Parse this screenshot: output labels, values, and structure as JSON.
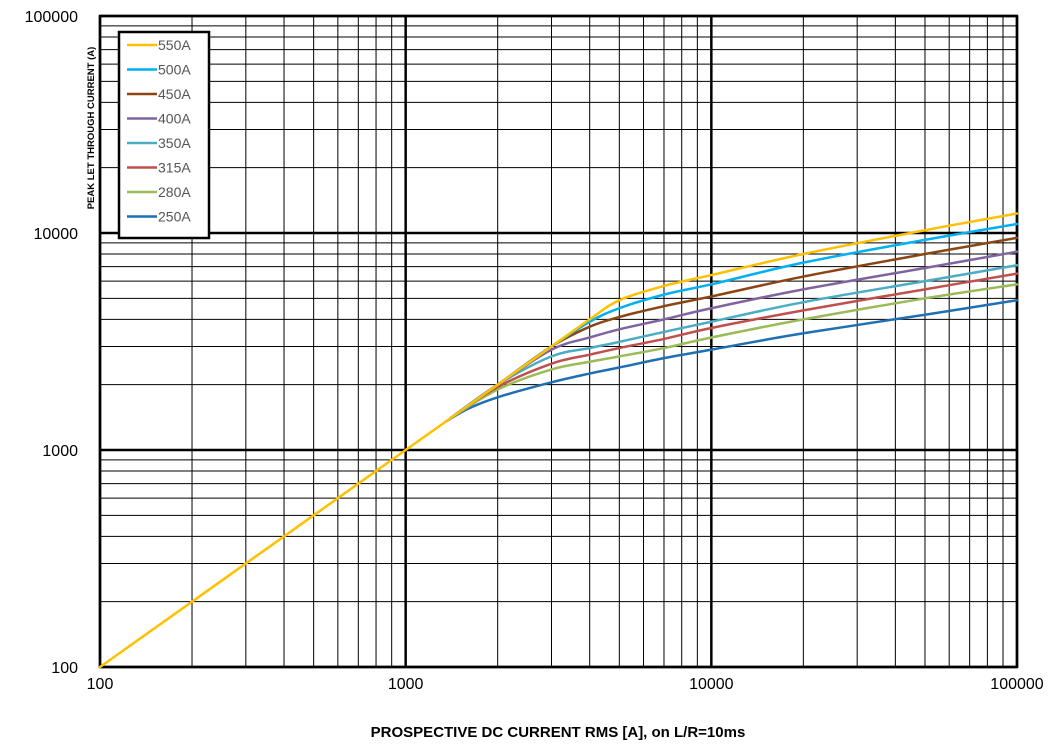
{
  "chart_data": {
    "type": "line",
    "title": "",
    "xlabel": "PROSPECTIVE DC CURRENT RMS [A], on L/R=10ms",
    "ylabel": "PEAK LET THROUGH CURRENT (A)",
    "xscale": "log",
    "yscale": "log",
    "xlim": [
      100,
      100000
    ],
    "ylim": [
      100,
      100000
    ],
    "x_ticks": [
      "100",
      "1000",
      "10000",
      "100000"
    ],
    "y_ticks": [
      "100",
      "1000",
      "10000",
      "100000"
    ],
    "grid": true,
    "legend_position": "top-left",
    "series": [
      {
        "name": "550A",
        "color": "#FFC000",
        "x": [
          100,
          500,
          1000,
          2000,
          3000,
          4000,
          5000,
          7000,
          10000,
          20000,
          50000,
          100000
        ],
        "y": [
          100,
          500,
          1000,
          2000,
          3000,
          4000,
          4900,
          5700,
          6400,
          8000,
          10300,
          12300
        ]
      },
      {
        "name": "500A",
        "color": "#00B0F0",
        "x": [
          1400,
          2000,
          3000,
          4000,
          5000,
          7000,
          10000,
          20000,
          50000,
          100000
        ],
        "y": [
          1400,
          2000,
          3000,
          3900,
          4500,
          5200,
          5800,
          7300,
          9300,
          11000
        ]
      },
      {
        "name": "450A",
        "color": "#8B4513",
        "x": [
          1400,
          2000,
          3000,
          4000,
          5000,
          7000,
          10000,
          20000,
          50000,
          100000
        ],
        "y": [
          1400,
          2000,
          3000,
          3700,
          4100,
          4600,
          5100,
          6300,
          8000,
          9500
        ]
      },
      {
        "name": "400A",
        "color": "#8064A2",
        "x": [
          1400,
          2000,
          3000,
          4000,
          5000,
          7000,
          10000,
          20000,
          50000,
          100000
        ],
        "y": [
          1400,
          2000,
          2900,
          3300,
          3600,
          4000,
          4500,
          5500,
          6900,
          8200
        ]
      },
      {
        "name": "350A",
        "color": "#4BACC6",
        "x": [
          1400,
          2000,
          3000,
          4000,
          5000,
          7000,
          10000,
          20000,
          50000,
          100000
        ],
        "y": [
          1400,
          2000,
          2700,
          2950,
          3150,
          3500,
          3900,
          4800,
          6000,
          7100
        ]
      },
      {
        "name": "315A",
        "color": "#C0504D",
        "x": [
          1400,
          2000,
          3000,
          4000,
          5000,
          7000,
          10000,
          20000,
          50000,
          100000
        ],
        "y": [
          1400,
          1950,
          2500,
          2750,
          2950,
          3250,
          3650,
          4400,
          5500,
          6500
        ]
      },
      {
        "name": "280A",
        "color": "#9BBB59",
        "x": [
          1400,
          2000,
          3000,
          4000,
          5000,
          7000,
          10000,
          20000,
          50000,
          100000
        ],
        "y": [
          1400,
          1900,
          2350,
          2550,
          2700,
          2950,
          3300,
          4000,
          5000,
          5800
        ]
      },
      {
        "name": "250A",
        "color": "#1F6FB5",
        "x": [
          1350,
          1600,
          2000,
          3000,
          4000,
          5000,
          7000,
          10000,
          20000,
          50000,
          100000
        ],
        "y": [
          1350,
          1550,
          1750,
          2050,
          2250,
          2400,
          2650,
          2900,
          3450,
          4200,
          4900
        ]
      }
    ]
  }
}
